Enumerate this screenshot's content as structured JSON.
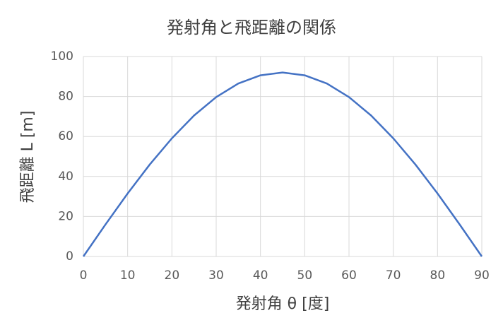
{
  "chart_data": {
    "type": "line",
    "title": "発射角と飛距離の関係",
    "x_label": "発射角 θ [度]",
    "y_label": "飛距離 L [m]",
    "x": [
      0,
      5,
      10,
      15,
      20,
      25,
      30,
      35,
      40,
      45,
      50,
      55,
      60,
      65,
      70,
      75,
      80,
      85,
      90
    ],
    "values": [
      0,
      16,
      31.5,
      46,
      59.1,
      70.5,
      79.7,
      86.5,
      90.6,
      92,
      90.6,
      86.5,
      79.7,
      70.5,
      59.1,
      46,
      31.5,
      16,
      0
    ],
    "color": "#4472c4",
    "xlim": [
      0,
      90
    ],
    "xticks": [
      0,
      10,
      20,
      30,
      40,
      50,
      60,
      70,
      80,
      90
    ],
    "ylim": [
      0,
      100
    ],
    "yticks": [
      0,
      20,
      40,
      60,
      80,
      100
    ],
    "grid": true
  }
}
